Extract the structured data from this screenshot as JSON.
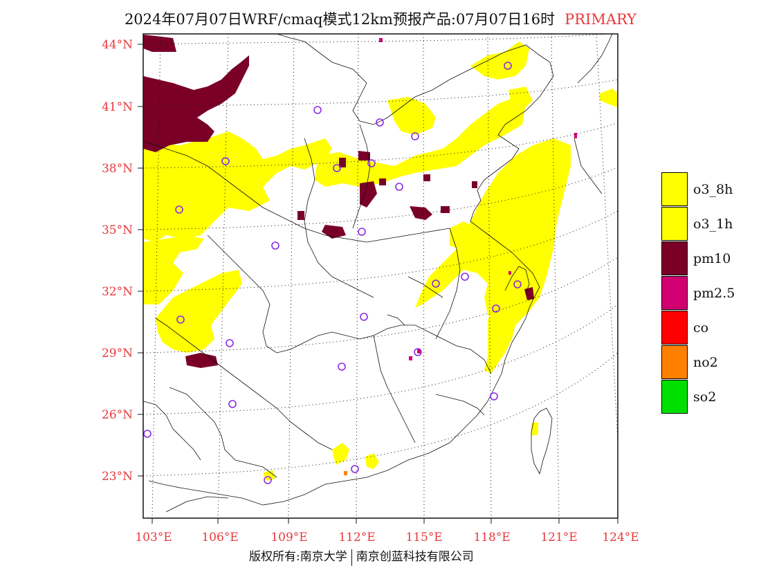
{
  "title": {
    "main": "2024年07月07日WRF/cmaq模式12km预报产品:07月07日16时",
    "tag": "PRIMARY"
  },
  "map": {
    "lat_labels": [
      "44°N",
      "41°N",
      "38°N",
      "35°N",
      "32°N",
      "29°N",
      "26°N",
      "23°N"
    ],
    "lon_labels": [
      "103°E",
      "106°E",
      "109°E",
      "112°E",
      "115°E",
      "118°E",
      "121°E",
      "124°E"
    ],
    "extent": {
      "lon": [
        102.7,
        124
      ],
      "lat": [
        21.0,
        44.5
      ]
    }
  },
  "legend": {
    "items": [
      {
        "label": "o3_8h",
        "color": "#ffff00"
      },
      {
        "label": "o3_1h",
        "color": "#ffff00"
      },
      {
        "label": "pm10",
        "color": "#7a0028"
      },
      {
        "label": "pm2.5",
        "color": "#d00070"
      },
      {
        "label": "co",
        "color": "#ff0000"
      },
      {
        "label": "no2",
        "color": "#ff8000"
      },
      {
        "label": "so2",
        "color": "#00e000"
      }
    ]
  },
  "colors": {
    "o3": "#ffff00",
    "pm10": "#7a0028",
    "pm25": "#d00070",
    "no2": "#ff8000",
    "station": "#8a2be2",
    "axis_label": "#e8383c"
  },
  "copyright": {
    "left": "版权所有:南京大学",
    "right": "南京创蓝科技有限公司"
  }
}
